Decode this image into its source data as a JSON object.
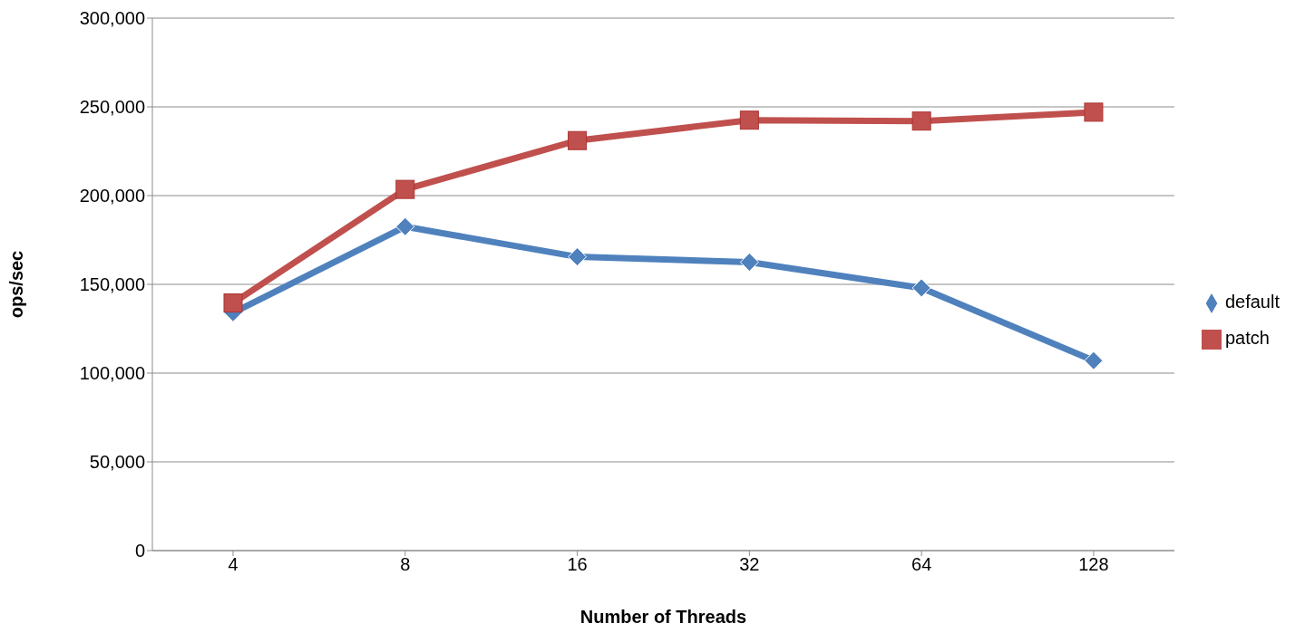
{
  "chart_data": {
    "type": "line",
    "xlabel": "Number of Threads",
    "ylabel": "ops/sec",
    "categories": [
      "4",
      "8",
      "16",
      "32",
      "64",
      "128"
    ],
    "series": [
      {
        "name": "default",
        "color": "#4f81bd",
        "marker": "diamond",
        "values": [
          134000,
          182500,
          165500,
          162500,
          148000,
          107000
        ]
      },
      {
        "name": "patch",
        "color": "#c0504d",
        "marker": "square",
        "values": [
          139500,
          203500,
          231000,
          242500,
          242000,
          247000
        ]
      }
    ],
    "ylim": [
      0,
      300000
    ],
    "yticks": [
      0,
      {
        "value": 50000,
        "label": "50,000"
      },
      {
        "value": 100000,
        "label": "100,000"
      },
      {
        "value": 150000,
        "label": "150,000"
      },
      {
        "value": 200000,
        "label": "200,000"
      },
      {
        "value": 250000,
        "label": "250,000"
      },
      {
        "value": 300000,
        "label": "300,000"
      }
    ],
    "grid": "y",
    "legend": "right"
  }
}
